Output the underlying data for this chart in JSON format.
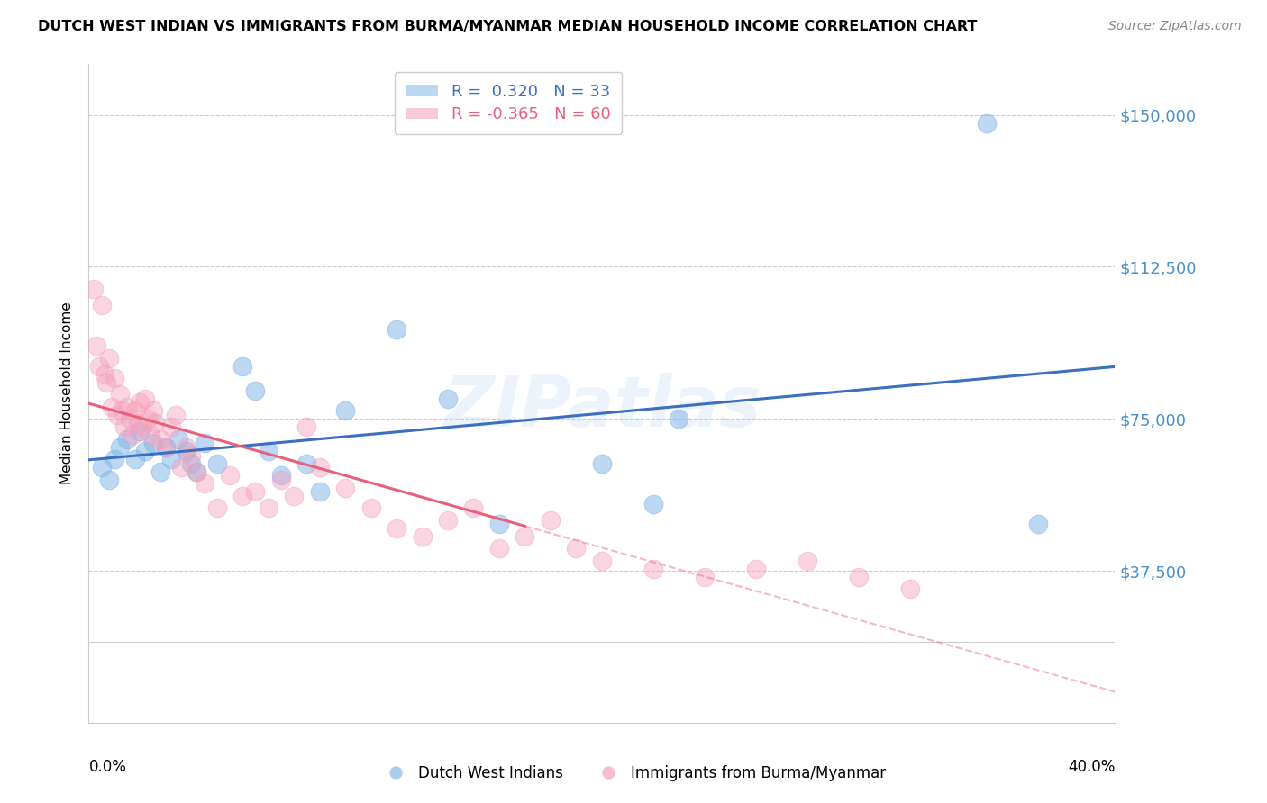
{
  "title": "DUTCH WEST INDIAN VS IMMIGRANTS FROM BURMA/MYANMAR MEDIAN HOUSEHOLD INCOME CORRELATION CHART",
  "source": "Source: ZipAtlas.com",
  "ylabel": "Median Household Income",
  "yticks": [
    0,
    37500,
    75000,
    112500,
    150000
  ],
  "ytick_labels": [
    "",
    "$37,500",
    "$75,000",
    "$112,500",
    "$150,000"
  ],
  "xlim": [
    0.0,
    0.4
  ],
  "ylim": [
    20000,
    162500
  ],
  "blue_R": 0.32,
  "blue_N": 33,
  "pink_R": -0.365,
  "pink_N": 60,
  "legend_label_blue": "Dutch West Indians",
  "legend_label_pink": "Immigrants from Burma/Myanmar",
  "watermark": "ZIPatlas",
  "blue_color": "#85B8E8",
  "pink_color": "#F4A0BB",
  "blue_line_color": "#3B6FBF",
  "pink_line_color": "#E8607A",
  "blue_scatter_x": [
    0.005,
    0.008,
    0.01,
    0.012,
    0.015,
    0.018,
    0.02,
    0.022,
    0.025,
    0.028,
    0.03,
    0.032,
    0.035,
    0.038,
    0.04,
    0.042,
    0.045,
    0.05,
    0.06,
    0.065,
    0.07,
    0.075,
    0.085,
    0.09,
    0.1,
    0.12,
    0.14,
    0.16,
    0.2,
    0.22,
    0.23,
    0.35,
    0.37
  ],
  "blue_scatter_y": [
    63000,
    60000,
    65000,
    68000,
    70000,
    65000,
    72000,
    67000,
    69000,
    62000,
    68000,
    65000,
    70000,
    67000,
    64000,
    62000,
    69000,
    64000,
    88000,
    82000,
    67000,
    61000,
    64000,
    57000,
    77000,
    97000,
    80000,
    49000,
    64000,
    54000,
    75000,
    148000,
    49000
  ],
  "pink_scatter_x": [
    0.002,
    0.003,
    0.004,
    0.005,
    0.006,
    0.007,
    0.008,
    0.009,
    0.01,
    0.011,
    0.012,
    0.013,
    0.014,
    0.015,
    0.016,
    0.017,
    0.018,
    0.019,
    0.02,
    0.021,
    0.022,
    0.023,
    0.024,
    0.025,
    0.026,
    0.028,
    0.03,
    0.032,
    0.034,
    0.036,
    0.038,
    0.04,
    0.042,
    0.045,
    0.05,
    0.055,
    0.06,
    0.065,
    0.07,
    0.075,
    0.08,
    0.085,
    0.09,
    0.1,
    0.11,
    0.12,
    0.13,
    0.14,
    0.15,
    0.16,
    0.17,
    0.18,
    0.19,
    0.2,
    0.22,
    0.24,
    0.26,
    0.28,
    0.3,
    0.32
  ],
  "pink_scatter_y": [
    107000,
    93000,
    88000,
    103000,
    86000,
    84000,
    90000,
    78000,
    85000,
    76000,
    81000,
    77000,
    73000,
    78000,
    75000,
    71000,
    77000,
    74000,
    79000,
    73000,
    80000,
    75000,
    71000,
    77000,
    74000,
    70000,
    68000,
    73000,
    76000,
    63000,
    68000,
    66000,
    62000,
    59000,
    53000,
    61000,
    56000,
    57000,
    53000,
    60000,
    56000,
    73000,
    63000,
    58000,
    53000,
    48000,
    46000,
    50000,
    53000,
    43000,
    46000,
    50000,
    43000,
    40000,
    38000,
    36000,
    38000,
    40000,
    36000,
    33000
  ]
}
